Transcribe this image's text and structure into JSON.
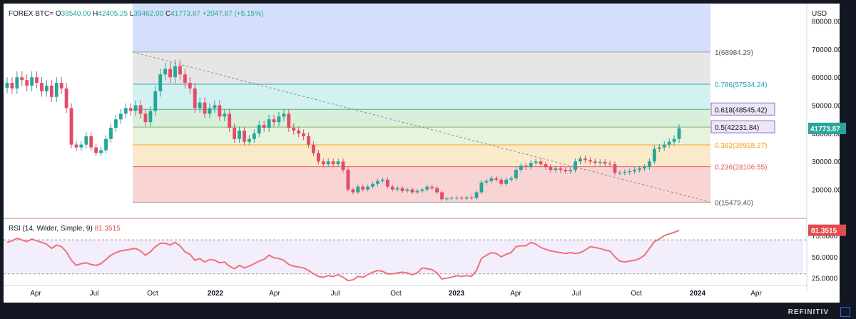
{
  "header": {
    "symbol": "FOREX BTC=",
    "open_label": "O",
    "open": "39540.00",
    "high_label": "H",
    "high": "42405.25",
    "low_label": "L",
    "low": "39462.00",
    "close_label": "C",
    "close": "41773.87",
    "change": "+2047.87 (+5.15%)"
  },
  "rsi_header": {
    "title": "RSI (14, Wilder, Simple, 9)",
    "value": "81.3515"
  },
  "brand": "REFINITIV",
  "colors": {
    "up": "#26a69a",
    "down": "#e14c6b",
    "rsi": "#f07178",
    "price_tag": "#26a69a",
    "rsi_tag": "#e14c4c"
  },
  "chart_data": [
    {
      "type": "candlestick",
      "title": "FOREX BTC=",
      "ylabel": "USD",
      "ylim": [
        12000,
        86000
      ],
      "x_ticks": [
        "Apr",
        "Jul",
        "Oct",
        "2022",
        "Apr",
        "Jul",
        "Oct",
        "2023",
        "Apr",
        "Jul",
        "Oct",
        "2024",
        "Apr"
      ],
      "y_ticks": [
        "80000.00",
        "70000.00",
        "60000.00",
        "50000.00",
        "40000.00",
        "30000.00",
        "20000.00"
      ],
      "last_price": "41773.87",
      "weekly_closes": [
        58000,
        56000,
        60000,
        59000,
        57000,
        60000,
        58000,
        55000,
        57000,
        53000,
        58000,
        56000,
        49000,
        36000,
        35000,
        36000,
        39000,
        35000,
        33000,
        34000,
        38000,
        42000,
        45000,
        47000,
        49000,
        48000,
        50000,
        47000,
        44000,
        48000,
        55000,
        61000,
        63000,
        60000,
        64000,
        61000,
        58000,
        56000,
        49000,
        51000,
        47000,
        49000,
        50000,
        46000,
        47000,
        42000,
        38000,
        41000,
        37000,
        38000,
        40000,
        43000,
        42000,
        45000,
        44000,
        46000,
        47000,
        42000,
        41000,
        40000,
        39000,
        36000,
        33000,
        30000,
        29000,
        30000,
        29000,
        30000,
        27000,
        20000,
        19000,
        21000,
        20000,
        21000,
        22000,
        23000,
        23500,
        21000,
        20000,
        20500,
        19500,
        20000,
        19000,
        19500,
        20000,
        21000,
        20500,
        19000,
        16500,
        16800,
        17000,
        17100,
        16800,
        17200,
        17000,
        19000,
        22500,
        23000,
        24000,
        23500,
        22000,
        23500,
        24000,
        27000,
        28500,
        28000,
        29500,
        30000,
        29000,
        28000,
        27000,
        27500,
        27000,
        26500,
        27000,
        30000,
        31000,
        30500,
        30000,
        29500,
        29800,
        29200,
        29000,
        26000,
        26000,
        26200,
        26500,
        27000,
        27500,
        28000,
        30000,
        34500,
        35000,
        36000,
        37000,
        38000,
        41773.87
      ],
      "fibonacci": [
        {
          "level": "1",
          "price": 68984.29,
          "label": "1(68984.29)"
        },
        {
          "level": "0.786",
          "price": 57534.24,
          "label": "0.786(57534.24)"
        },
        {
          "level": "0.618",
          "price": 48545.42,
          "label": "0.618(48545.42)"
        },
        {
          "level": "0.5",
          "price": 42231.84,
          "label": "0.5(42231.84)"
        },
        {
          "level": "0.382",
          "price": 35918.27,
          "label": "0.382(35918.27)"
        },
        {
          "level": "0.236",
          "price": 28106.55,
          "label": "0.236(28106.55)"
        },
        {
          "level": "0",
          "price": 15479.4,
          "label": "0(15479.40)"
        }
      ],
      "trendline": {
        "from": 68984.29,
        "to": 15479.4
      }
    },
    {
      "type": "line",
      "title": "RSI (14, Wilder, Simple, 9)",
      "ylim": [
        18,
        92
      ],
      "y_ticks": [
        "75.0000",
        "50.0000",
        "25.0000"
      ],
      "overbought": 70,
      "oversold": 30,
      "last_value": "81.3515",
      "values": [
        67,
        69,
        72,
        70,
        68,
        71,
        69,
        67,
        65,
        60,
        64,
        62,
        56,
        46,
        40,
        42,
        43,
        41,
        40,
        42,
        47,
        52,
        55,
        57,
        58,
        59,
        60,
        57,
        52,
        56,
        62,
        66,
        66,
        64,
        67,
        63,
        56,
        53,
        46,
        48,
        44,
        47,
        46,
        43,
        44,
        39,
        36,
        40,
        37,
        39,
        42,
        45,
        47,
        52,
        49,
        48,
        46,
        41,
        39,
        38,
        37,
        34,
        30,
        27,
        26,
        28,
        27,
        29,
        26,
        22,
        23,
        27,
        26,
        29,
        32,
        34,
        33,
        30,
        30,
        31,
        32,
        31,
        29,
        31,
        37,
        36,
        35,
        31,
        24,
        25,
        26,
        28,
        27,
        28,
        27,
        34,
        48,
        52,
        55,
        54,
        50,
        53,
        55,
        62,
        63,
        63,
        67,
        65,
        61,
        59,
        57,
        56,
        55,
        54,
        55,
        54,
        55,
        58,
        62,
        61,
        60,
        58,
        57,
        50,
        45,
        44,
        45,
        46,
        48,
        52,
        60,
        68,
        71,
        75,
        77,
        79,
        81.35
      ]
    }
  ]
}
